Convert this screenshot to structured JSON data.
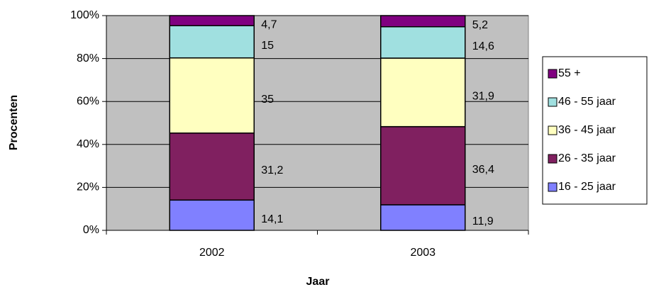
{
  "chart_data": {
    "type": "stacked_bar",
    "x_label": "Jaar",
    "y_label": "Procenten",
    "categories": [
      "2002",
      "2003"
    ],
    "series": [
      {
        "name": "16 - 25 jaar",
        "color": "#8080ff",
        "values": [
          14.1,
          11.9
        ],
        "value_labels": [
          "14,1",
          "11,9"
        ]
      },
      {
        "name": "26 - 35 jaar",
        "color": "#802060",
        "values": [
          31.2,
          36.4
        ],
        "value_labels": [
          "31,2",
          "36,4"
        ]
      },
      {
        "name": "36 - 45 jaar",
        "color": "#ffffc0",
        "values": [
          35,
          31.9
        ],
        "value_labels": [
          "35",
          "31,9"
        ]
      },
      {
        "name": "46 - 55 jaar",
        "color": "#a0e0e0",
        "values": [
          15,
          14.6
        ],
        "value_labels": [
          "15",
          "14,6"
        ]
      },
      {
        "name": "55 +",
        "color": "#800080",
        "values": [
          4.7,
          5.2
        ],
        "value_labels": [
          "4,7",
          "5,2"
        ]
      }
    ],
    "ylim": [
      0,
      100
    ],
    "yticks": [
      {
        "value": 0,
        "label": "0%"
      },
      {
        "value": 20,
        "label": "20%"
      },
      {
        "value": 40,
        "label": "40%"
      },
      {
        "value": 60,
        "label": "60%"
      },
      {
        "value": 80,
        "label": "80%"
      },
      {
        "value": 100,
        "label": "100%"
      }
    ],
    "grid": true,
    "legend": "right",
    "plot_background": "#c0c0c0"
  }
}
